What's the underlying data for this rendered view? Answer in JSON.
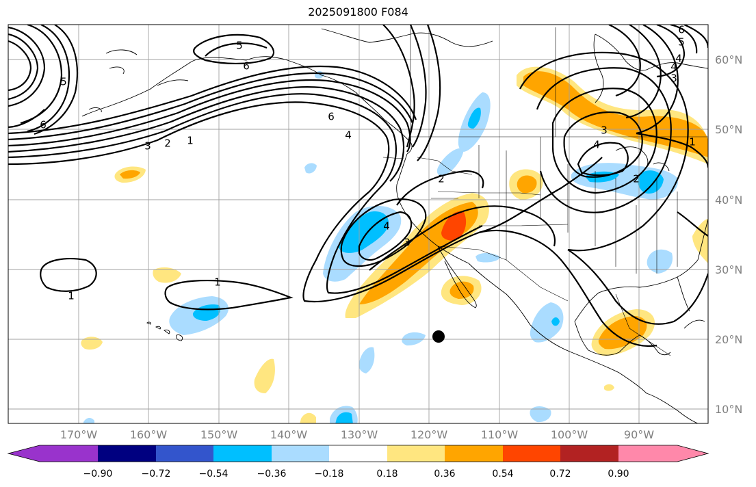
{
  "title": "2025091800 F084",
  "latitudes": [
    "60°N",
    "50°N",
    "40°N",
    "30°N",
    "20°N",
    "10°N"
  ],
  "longitudes": [
    "170°W",
    "160°W",
    "150°W",
    "140°W",
    "130°W",
    "120°W",
    "110°W",
    "100°W",
    "90°W"
  ],
  "colorbar": {
    "ticks": [
      "−0.90",
      "−0.72",
      "−0.54",
      "−0.36",
      "−0.18",
      "0.18",
      "0.36",
      "0.54",
      "0.72",
      "0.90"
    ],
    "colors": [
      "#9933cc",
      "#000080",
      "#3355cc",
      "#00bfff",
      "#aadcff",
      "#ffffff",
      "#ffe680",
      "#ffa500",
      "#ff4500",
      "#b22222",
      "#ff88aa"
    ]
  },
  "contour_labels": [
    "5",
    "6",
    "6",
    "4",
    "3",
    "2",
    "1",
    "6",
    "4",
    "1",
    "1",
    "4",
    "3",
    "2",
    "3",
    "4",
    "2",
    "1",
    "3",
    "4",
    "5",
    "6",
    "5"
  ],
  "colors": {
    "neg_light": "#aadcff",
    "neg_mid": "#00bfff",
    "pos_light": "#ffe680",
    "pos_mid": "#ffa500",
    "pos_strong": "#ff4500"
  }
}
